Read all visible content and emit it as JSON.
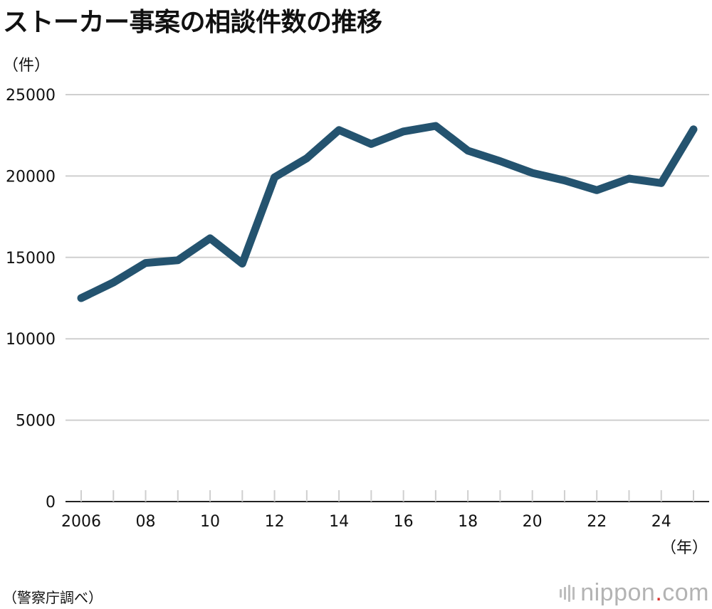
{
  "title": "ストーカー事案の相談件数の推移",
  "y_unit": "（件）",
  "x_unit": "（年）",
  "source": "（警察庁調べ）",
  "logo": {
    "main": "nippon",
    "dot": ".",
    "suffix": "com"
  },
  "colors": {
    "line": "#24536f",
    "grid": "#cfcfcf",
    "axis": "#222222",
    "logo": "#b3b3b3",
    "logo_dot": "#d9302c"
  },
  "chart_data": {
    "type": "line",
    "title": "ストーカー事案の相談件数の推移",
    "xlabel": "（年）",
    "ylabel": "（件）",
    "ylim": [
      0,
      25000
    ],
    "yticks": [
      0,
      5000,
      10000,
      15000,
      20000,
      25000
    ],
    "x": [
      2006,
      2007,
      2008,
      2009,
      2010,
      2011,
      2012,
      2013,
      2014,
      2015,
      2016,
      2017,
      2018,
      2019,
      2020,
      2021,
      2022,
      2023,
      2024,
      2025
    ],
    "xtick_labels": [
      {
        "year": 2006,
        "label": "2006"
      },
      {
        "year": 2008,
        "label": "08"
      },
      {
        "year": 2010,
        "label": "10"
      },
      {
        "year": 2012,
        "label": "12"
      },
      {
        "year": 2014,
        "label": "14"
      },
      {
        "year": 2016,
        "label": "16"
      },
      {
        "year": 2018,
        "label": "18"
      },
      {
        "year": 2020,
        "label": "20"
      },
      {
        "year": 2022,
        "label": "22"
      },
      {
        "year": 2024,
        "label": "24"
      }
    ],
    "series": [
      {
        "values": [
          12501,
          13463,
          14657,
          14823,
          16176,
          14618,
          19920,
          21089,
          22823,
          21968,
          22737,
          23079,
          21556,
          20912,
          20189,
          19728,
          19131,
          19843,
          19567,
          22868
        ]
      }
    ],
    "grid": true
  }
}
